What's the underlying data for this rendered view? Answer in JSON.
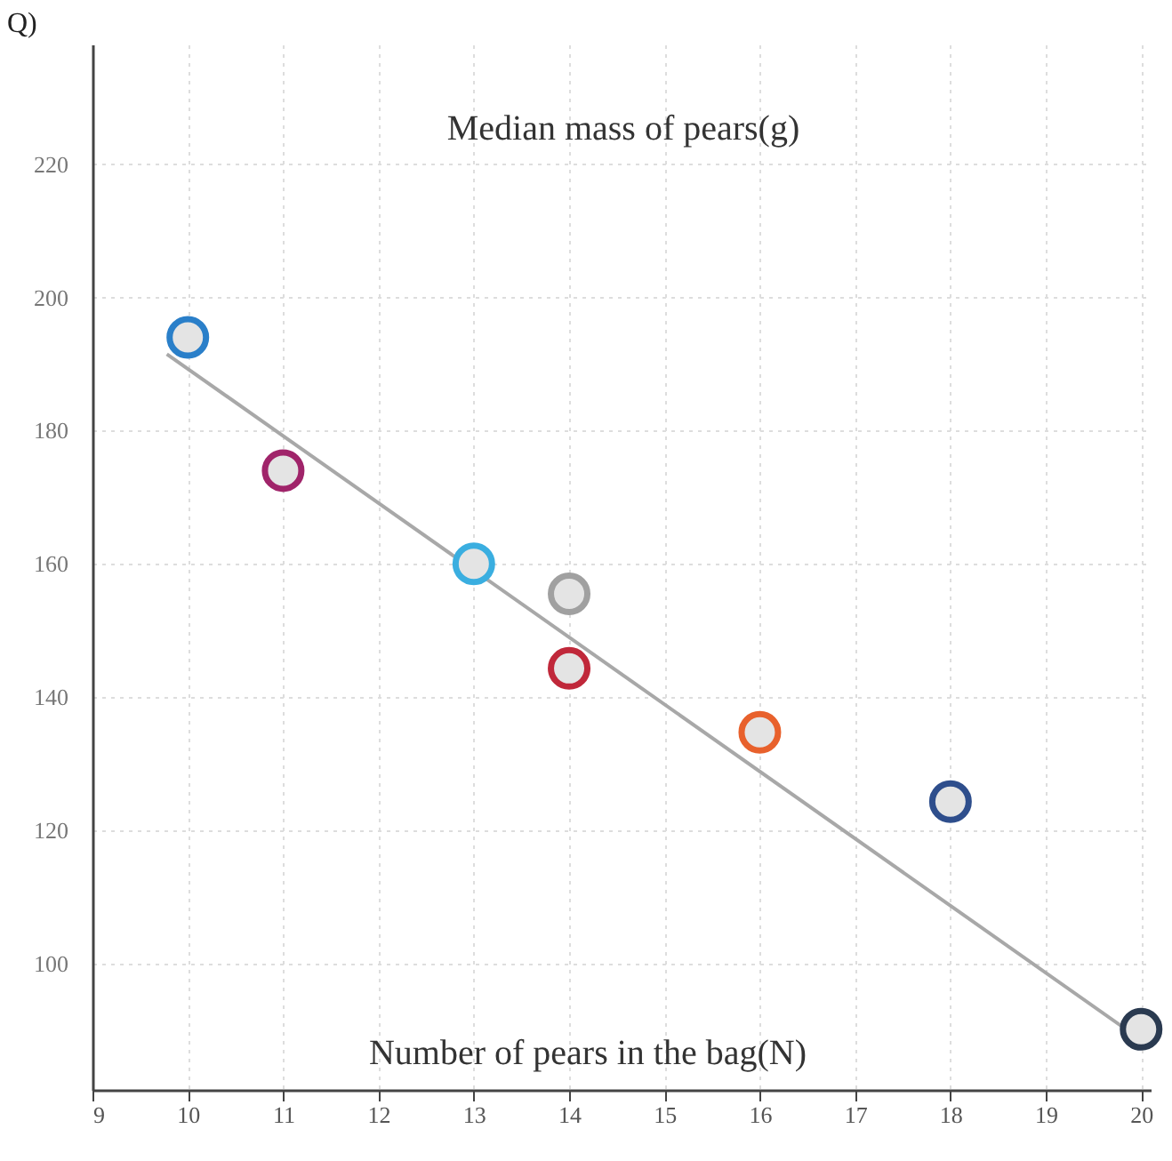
{
  "chart_data": {
    "type": "scatter",
    "title": "Q)",
    "xlabel": "Number of pears in the bag(N)",
    "ylabel": "Median mass of pears(g)",
    "x": [
      10,
      11,
      13,
      14,
      14,
      16,
      18,
      20
    ],
    "values": [
      194,
      174,
      160,
      155.5,
      144.3,
      134.7,
      124.3,
      90.1
    ],
    "colors": [
      "#2a7fc9",
      "#a0246a",
      "#3aaee0",
      "#a0a0a0",
      "#c0283a",
      "#e8612c",
      "#2e4e8c",
      "#2a3a50"
    ],
    "series": [
      {
        "type": "line",
        "color": "#a8a8a8",
        "x": [
          9.78,
          20
        ],
        "values": [
          191.5,
          88.5
        ]
      }
    ],
    "xlim": [
      9,
      20.1
    ],
    "ylim": [
      81,
      238
    ],
    "xticks": [
      9,
      10,
      11,
      12,
      13,
      14,
      15,
      16,
      17,
      18,
      19,
      20
    ],
    "yticks": [
      100,
      120,
      140,
      160,
      180,
      200,
      220
    ],
    "grid": true
  }
}
